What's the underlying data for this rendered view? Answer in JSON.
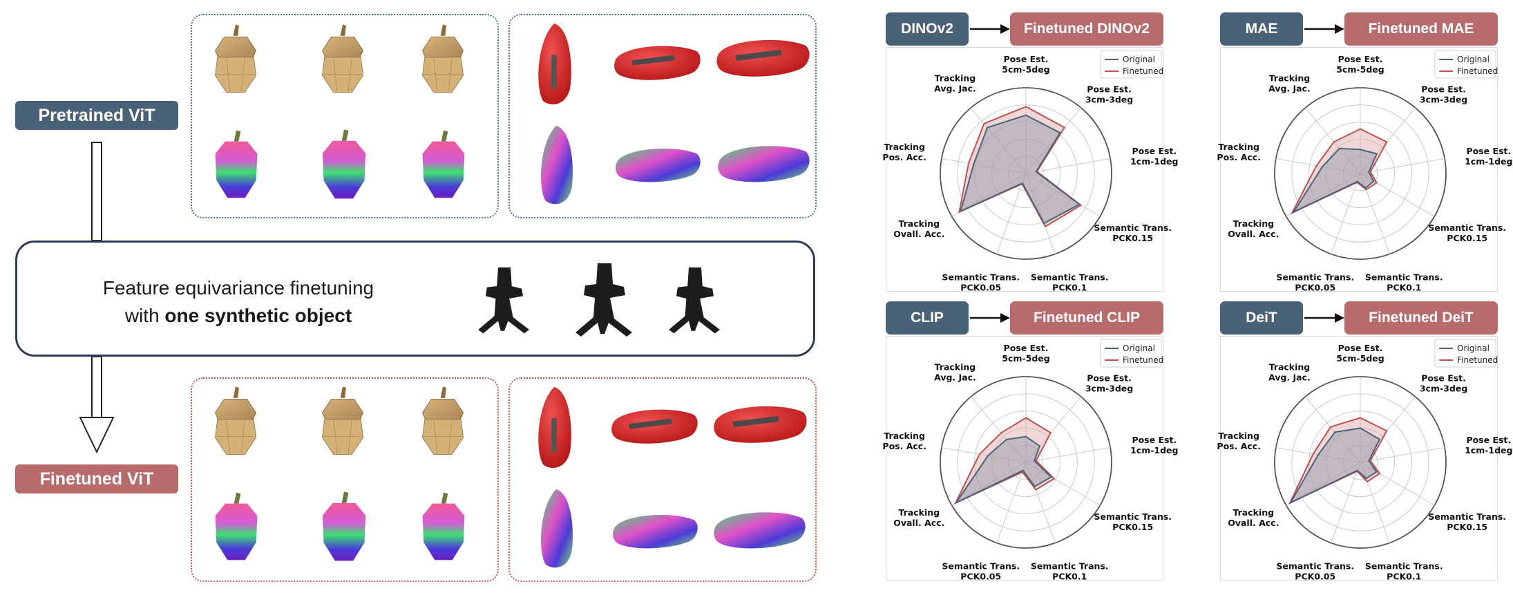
{
  "labels": {
    "pretrained": "Pretrained ViT",
    "finetuned": "Finetuned ViT",
    "mid_line1": "Feature equivariance finetuning",
    "mid_line2_prefix": "with ",
    "mid_line2_bold": "one synthetic object"
  },
  "colors": {
    "original": "#4a6278",
    "finetuned": "#c0514f",
    "fill_original": "#8c97a6",
    "fill_finetuned": "#d9a7a5"
  },
  "chart_data": [
    {
      "type": "radar",
      "base_model": "DINOv2",
      "finetuned_model": "Finetuned DINOv2",
      "axes": [
        "Pose Est. 5cm-5deg",
        "Pose Est. 3cm-3deg",
        "Pose Est. 1cm-1deg",
        "Semantic Trans. PCK0.15",
        "Semantic Trans. PCK0.1",
        "Semantic Trans. PCK0.05",
        "Tracking Ovall. Acc.",
        "Tracking Pos. Acc.",
        "Tracking Avg. Jac."
      ],
      "axis_line1": [
        "Pose Est.",
        "Pose Est.",
        "Pose Est.",
        "Semantic Trans.",
        "Semantic Trans.",
        "Semantic Trans.",
        "Tracking",
        "Tracking",
        "Tracking"
      ],
      "axis_line2": [
        "5cm-5deg",
        "3cm-3deg",
        "1cm-1deg",
        "PCK0.15",
        "PCK0.1",
        "PCK0.05",
        "Ovall. Acc.",
        "Pos. Acc.",
        "Avg. Jac."
      ],
      "legend": [
        "Original",
        "Finetuned"
      ],
      "series": [
        {
          "name": "Original",
          "values": [
            0.68,
            0.62,
            0.12,
            0.72,
            0.62,
            0.12,
            0.88,
            0.62,
            0.7
          ]
        },
        {
          "name": "Finetuned",
          "values": [
            0.78,
            0.7,
            0.13,
            0.74,
            0.66,
            0.13,
            0.9,
            0.68,
            0.76
          ]
        }
      ],
      "ylim": [
        0,
        1
      ]
    },
    {
      "type": "radar",
      "base_model": "MAE",
      "finetuned_model": "Finetuned MAE",
      "axes": [
        "Pose Est. 5cm-5deg",
        "Pose Est. 3cm-3deg",
        "Pose Est. 1cm-1deg",
        "Semantic Trans. PCK0.15",
        "Semantic Trans. PCK0.1",
        "Semantic Trans. PCK0.05",
        "Tracking Ovall. Acc.",
        "Tracking Pos. Acc.",
        "Tracking Avg. Jac."
      ],
      "axis_line1": [
        "Pose Est.",
        "Pose Est.",
        "Pose Est.",
        "Semantic Trans.",
        "Semantic Trans.",
        "Semantic Trans.",
        "Tracking",
        "Tracking",
        "Tracking"
      ],
      "axis_line2": [
        "5cm-5deg",
        "3cm-3deg",
        "1cm-1deg",
        "PCK0.15",
        "PCK0.1",
        "PCK0.05",
        "Ovall. Acc.",
        "Pos. Acc.",
        "Avg. Jac."
      ],
      "legend": [
        "Original",
        "Finetuned"
      ],
      "series": [
        {
          "name": "Original",
          "values": [
            0.28,
            0.3,
            0.1,
            0.18,
            0.18,
            0.1,
            0.9,
            0.45,
            0.38
          ]
        },
        {
          "name": "Finetuned",
          "values": [
            0.52,
            0.48,
            0.12,
            0.22,
            0.2,
            0.11,
            0.92,
            0.52,
            0.48
          ]
        }
      ],
      "ylim": [
        0,
        1
      ]
    },
    {
      "type": "radar",
      "base_model": "CLIP",
      "finetuned_model": "Finetuned CLIP",
      "axes": [
        "Pose Est. 5cm-5deg",
        "Pose Est. 3cm-3deg",
        "Pose Est. 1cm-1deg",
        "Semantic Trans. PCK0.15",
        "Semantic Trans. PCK0.1",
        "Semantic Trans. PCK0.05",
        "Tracking Ovall. Acc.",
        "Tracking Pos. Acc.",
        "Tracking Avg. Jac."
      ],
      "axis_line1": [
        "Pose Est.",
        "Pose Est.",
        "Pose Est.",
        "Semantic Trans.",
        "Semantic Trans.",
        "Semantic Trans.",
        "Tracking",
        "Tracking",
        "Tracking"
      ],
      "axis_line2": [
        "5cm-5deg",
        "3cm-3deg",
        "1cm-1deg",
        "PCK0.15",
        "PCK0.1",
        "PCK0.05",
        "Ovall. Acc.",
        "Pos. Acc.",
        "Avg. Jac."
      ],
      "legend": [
        "Original",
        "Finetuned"
      ],
      "series": [
        {
          "name": "Original",
          "values": [
            0.3,
            0.25,
            0.1,
            0.34,
            0.3,
            0.1,
            0.94,
            0.45,
            0.35
          ]
        },
        {
          "name": "Finetuned",
          "values": [
            0.52,
            0.45,
            0.12,
            0.38,
            0.34,
            0.12,
            0.95,
            0.55,
            0.45
          ]
        }
      ],
      "ylim": [
        0,
        1
      ]
    },
    {
      "type": "radar",
      "base_model": "DeiT",
      "finetuned_model": "Finetuned DeiT",
      "axes": [
        "Pose Est. 5cm-5deg",
        "Pose Est. 3cm-3deg",
        "Pose Est. 1cm-1deg",
        "Semantic Trans. PCK0.15",
        "Semantic Trans. PCK0.1",
        "Semantic Trans. PCK0.05",
        "Tracking Ovall. Acc.",
        "Tracking Pos. Acc.",
        "Tracking Avg. Jac."
      ],
      "axis_line1": [
        "Pose Est.",
        "Pose Est.",
        "Pose Est.",
        "Semantic Trans.",
        "Semantic Trans.",
        "Semantic Trans.",
        "Tracking",
        "Tracking",
        "Tracking"
      ],
      "axis_line2": [
        "5cm-5deg",
        "3cm-3deg",
        "1cm-1deg",
        "PCK0.15",
        "PCK0.1",
        "PCK0.05",
        "Ovall. Acc.",
        "Pos. Acc.",
        "Avg. Jac."
      ],
      "legend": [
        "Original",
        "Finetuned"
      ],
      "series": [
        {
          "name": "Original",
          "values": [
            0.4,
            0.35,
            0.1,
            0.22,
            0.2,
            0.1,
            0.94,
            0.5,
            0.46
          ]
        },
        {
          "name": "Finetuned",
          "values": [
            0.52,
            0.48,
            0.12,
            0.26,
            0.24,
            0.11,
            0.95,
            0.56,
            0.54
          ]
        }
      ],
      "ylim": [
        0,
        1
      ]
    }
  ]
}
